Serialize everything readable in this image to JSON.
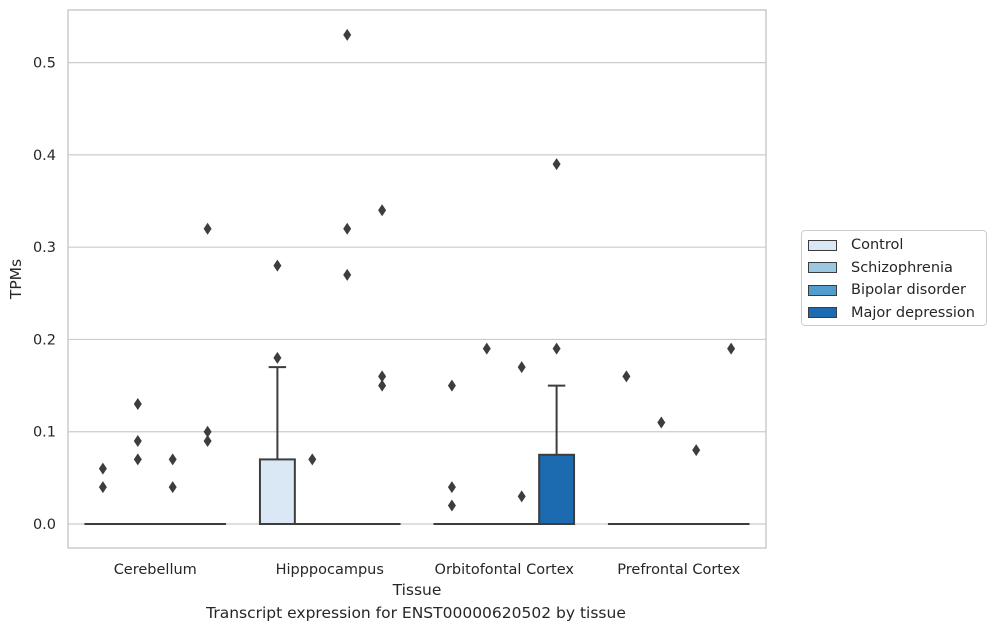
{
  "chart_data": {
    "type": "box",
    "xlabel": "Tissue",
    "ylabel": "TPMs",
    "caption": "Transcript expression for ENST00000620502 by tissue",
    "ylim": [
      -0.026,
      0.557
    ],
    "yticks": [
      0.0,
      0.1,
      0.2,
      0.3,
      0.4,
      0.5
    ],
    "ytick_labels": [
      "0.0",
      "0.1",
      "0.2",
      "0.3",
      "0.4",
      "0.5"
    ],
    "grid": "horizontal",
    "legend_position": "right",
    "categories": [
      "Cerebellum",
      "Hipppocampus",
      "Orbitofontal Cortex",
      "Prefrontal Cortex"
    ],
    "series": [
      {
        "name": "Control",
        "color": "#dae8f5",
        "boxes": [
          {
            "category": "Cerebellum",
            "q1": 0.0,
            "median": 0.0,
            "q3": 0.0,
            "whisker_low": 0.0,
            "whisker_high": 0.0
          },
          {
            "category": "Hipppocampus",
            "q1": 0.0,
            "median": 0.0,
            "q3": 0.07,
            "whisker_low": 0.0,
            "whisker_high": 0.17
          },
          {
            "category": "Orbitofontal Cortex",
            "q1": 0.0,
            "median": 0.0,
            "q3": 0.0,
            "whisker_low": 0.0,
            "whisker_high": 0.0
          },
          {
            "category": "Prefrontal Cortex",
            "q1": 0.0,
            "median": 0.0,
            "q3": 0.0,
            "whisker_low": 0.0,
            "whisker_high": 0.0
          }
        ],
        "outliers": [
          {
            "category": "Cerebellum",
            "values": [
              0.06,
              0.04
            ]
          },
          {
            "category": "Hipppocampus",
            "values": [
              0.28,
              0.18
            ]
          },
          {
            "category": "Orbitofontal Cortex",
            "values": [
              0.15,
              0.04,
              0.02
            ]
          },
          {
            "category": "Prefrontal Cortex",
            "values": [
              0.16
            ]
          }
        ]
      },
      {
        "name": "Schizophrenia",
        "color": "#9ac8e0",
        "boxes": [
          {
            "category": "Cerebellum",
            "q1": 0.0,
            "median": 0.0,
            "q3": 0.0,
            "whisker_low": 0.0,
            "whisker_high": 0.0
          },
          {
            "category": "Hipppocampus",
            "q1": 0.0,
            "median": 0.0,
            "q3": 0.0,
            "whisker_low": 0.0,
            "whisker_high": 0.0
          },
          {
            "category": "Orbitofontal Cortex",
            "q1": 0.0,
            "median": 0.0,
            "q3": 0.0,
            "whisker_low": 0.0,
            "whisker_high": 0.0
          },
          {
            "category": "Prefrontal Cortex",
            "q1": 0.0,
            "median": 0.0,
            "q3": 0.0,
            "whisker_low": 0.0,
            "whisker_high": 0.0
          }
        ],
        "outliers": [
          {
            "category": "Cerebellum",
            "values": [
              0.13,
              0.09,
              0.07
            ]
          },
          {
            "category": "Hipppocampus",
            "values": [
              0.07
            ]
          },
          {
            "category": "Orbitofontal Cortex",
            "values": [
              0.19
            ]
          },
          {
            "category": "Prefrontal Cortex",
            "values": [
              0.11
            ]
          }
        ]
      },
      {
        "name": "Bipolar disorder",
        "color": "#529dcc",
        "boxes": [
          {
            "category": "Cerebellum",
            "q1": 0.0,
            "median": 0.0,
            "q3": 0.0,
            "whisker_low": 0.0,
            "whisker_high": 0.0
          },
          {
            "category": "Hipppocampus",
            "q1": 0.0,
            "median": 0.0,
            "q3": 0.0,
            "whisker_low": 0.0,
            "whisker_high": 0.0
          },
          {
            "category": "Orbitofontal Cortex",
            "q1": 0.0,
            "median": 0.0,
            "q3": 0.0,
            "whisker_low": 0.0,
            "whisker_high": 0.0
          },
          {
            "category": "Prefrontal Cortex",
            "q1": 0.0,
            "median": 0.0,
            "q3": 0.0,
            "whisker_low": 0.0,
            "whisker_high": 0.0
          }
        ],
        "outliers": [
          {
            "category": "Cerebellum",
            "values": [
              0.07,
              0.04
            ]
          },
          {
            "category": "Hipppocampus",
            "values": [
              0.53,
              0.32,
              0.27
            ]
          },
          {
            "category": "Orbitofontal Cortex",
            "values": [
              0.17,
              0.03
            ]
          },
          {
            "category": "Prefrontal Cortex",
            "values": [
              0.08
            ]
          }
        ]
      },
      {
        "name": "Major depression",
        "color": "#1c6aaf",
        "boxes": [
          {
            "category": "Cerebellum",
            "q1": 0.0,
            "median": 0.0,
            "q3": 0.0,
            "whisker_low": 0.0,
            "whisker_high": 0.0
          },
          {
            "category": "Hipppocampus",
            "q1": 0.0,
            "median": 0.0,
            "q3": 0.0,
            "whisker_low": 0.0,
            "whisker_high": 0.0
          },
          {
            "category": "Orbitofontal Cortex",
            "q1": 0.0,
            "median": 0.0,
            "q3": 0.075,
            "whisker_low": 0.0,
            "whisker_high": 0.15
          },
          {
            "category": "Prefrontal Cortex",
            "q1": 0.0,
            "median": 0.0,
            "q3": 0.0,
            "whisker_low": 0.0,
            "whisker_high": 0.0
          }
        ],
        "outliers": [
          {
            "category": "Cerebellum",
            "values": [
              0.32,
              0.1,
              0.09
            ]
          },
          {
            "category": "Hipppocampus",
            "values": [
              0.34,
              0.16,
              0.15
            ]
          },
          {
            "category": "Orbitofontal Cortex",
            "values": [
              0.39,
              0.19
            ]
          },
          {
            "category": "Prefrontal Cortex",
            "values": [
              0.19
            ]
          }
        ]
      }
    ]
  },
  "legend": {
    "items": [
      {
        "label": "Control"
      },
      {
        "label": "Schizophrenia"
      },
      {
        "label": "Bipolar disorder"
      },
      {
        "label": "Major depression"
      }
    ]
  }
}
